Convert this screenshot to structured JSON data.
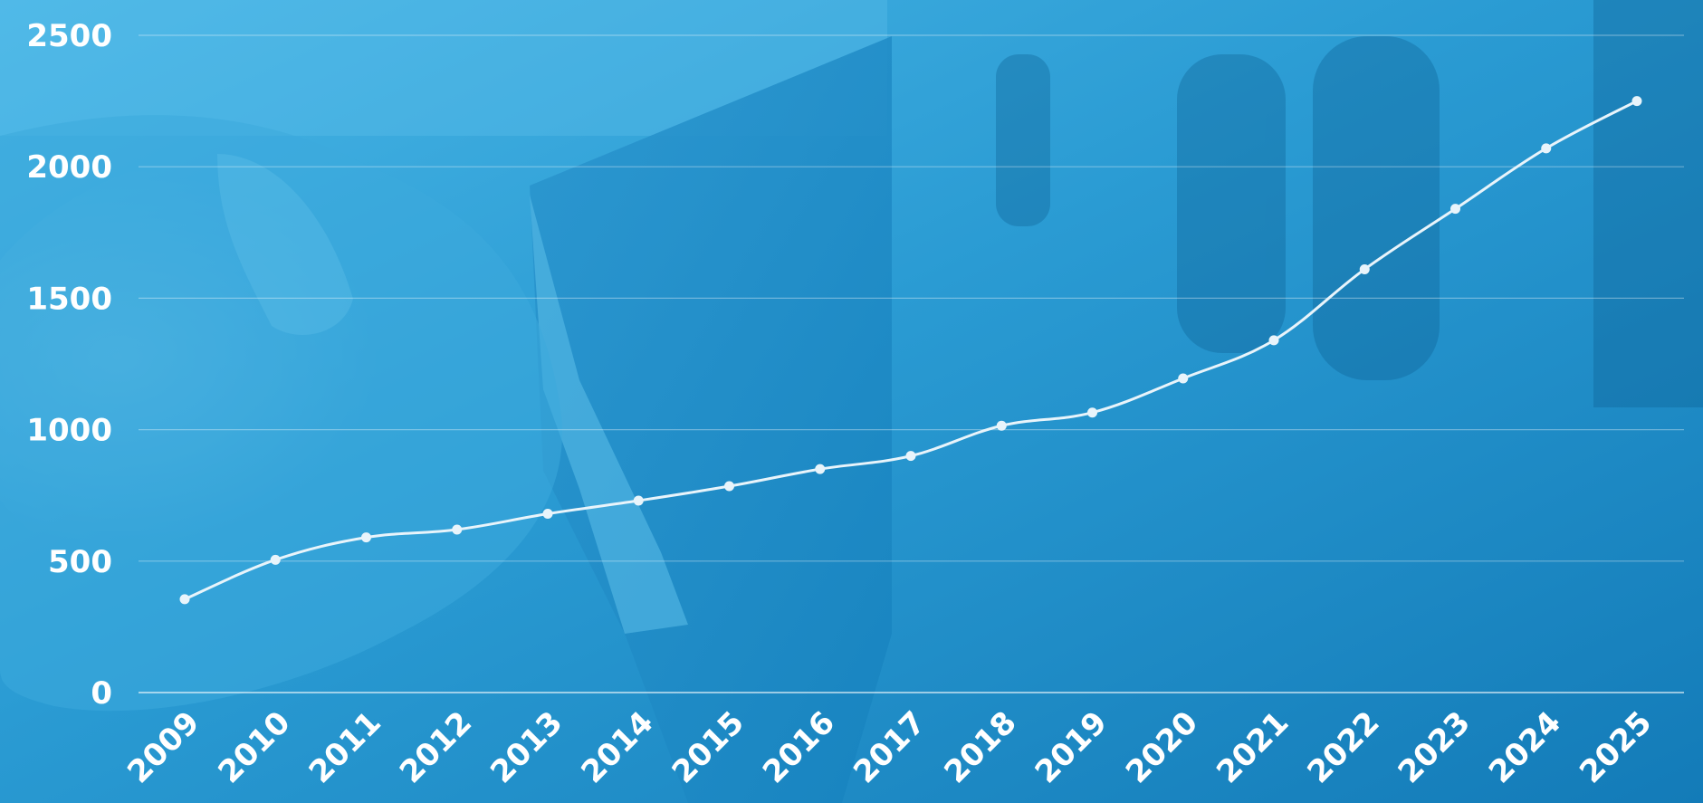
{
  "chart_data": {
    "type": "line",
    "title": "",
    "xlabel": "",
    "ylabel": "",
    "x": [
      "2009",
      "2010",
      "2011",
      "2012",
      "2013",
      "2014",
      "2015",
      "2016",
      "2017",
      "2018",
      "2019",
      "2020",
      "2021",
      "2022",
      "2023",
      "2024",
      "2025"
    ],
    "series": [
      {
        "values": [
          355,
          505,
          590,
          620,
          680,
          730,
          785,
          850,
          900,
          1015,
          1065,
          1195,
          1340,
          1610,
          1840,
          2070,
          2250
        ]
      }
    ],
    "ylim": [
      0,
      2500
    ],
    "yticks": [
      "0",
      "500",
      "1000",
      "1500",
      "2000",
      "2500"
    ],
    "grid": true,
    "legend": "none",
    "x_tick_rotation": "-45",
    "colors": {
      "line": "#e8f4fb",
      "markers": "#e8f4fb",
      "gridlines": "#ffffff",
      "tick_labels": "#ffffff",
      "background_tint": "#1a8bc7"
    }
  }
}
